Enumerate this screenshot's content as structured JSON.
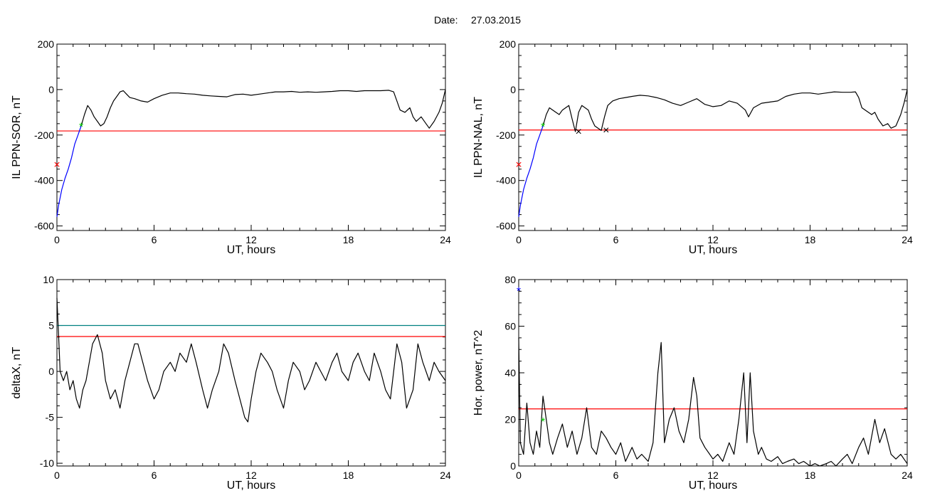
{
  "header": {
    "date_label": "Date:",
    "date_value": "27.03.2015"
  },
  "colors": {
    "signal": "#000000",
    "threshold": "#ff0000",
    "level": "#008080",
    "early": "#0000ff",
    "marker_red": "#ff0000",
    "marker_green": "#00cc00",
    "marker_blue": "#0000ff"
  },
  "chart_data": [
    {
      "id": "il-sor",
      "type": "line",
      "xlabel": "UT, hours",
      "ylabel": "IL PPN-SOR, nT",
      "xlim": [
        0,
        24
      ],
      "ylim": [
        -620,
        200
      ],
      "xticks": [
        0,
        6,
        12,
        18,
        24
      ],
      "yticks": [
        -600,
        -400,
        -200,
        0,
        200
      ],
      "threshold": -182,
      "series": [
        {
          "x": [
            0,
            0.1,
            0.3,
            0.5,
            0.7,
            0.9,
            1.1,
            1.3,
            1.5
          ],
          "y": [
            -560,
            -510,
            -440,
            -390,
            -350,
            -300,
            -240,
            -200,
            -160
          ],
          "color_key": "early"
        },
        {
          "x": [
            1.5,
            1.7,
            1.9,
            2.1,
            2.3,
            2.5,
            2.7,
            2.9,
            3.1,
            3.3,
            3.5,
            3.7,
            3.9,
            4.1,
            4.3,
            4.5,
            4.8,
            5.2,
            5.6,
            6,
            6.5,
            7,
            7.5,
            8,
            8.5,
            9,
            9.5,
            10,
            10.5,
            11,
            11.5,
            12,
            12.5,
            13,
            13.5,
            14,
            14.5,
            15,
            15.5,
            16,
            16.5,
            17,
            17.5,
            18,
            18.5,
            19,
            19.5,
            20,
            20.5,
            20.8,
            21,
            21.2,
            21.5,
            21.8,
            22,
            22.2,
            22.5,
            22.8,
            23,
            23.3,
            23.6,
            23.8,
            24
          ],
          "y": [
            -160,
            -110,
            -70,
            -90,
            -120,
            -140,
            -160,
            -150,
            -120,
            -80,
            -50,
            -30,
            -10,
            -5,
            -20,
            -35,
            -40,
            -50,
            -55,
            -40,
            -25,
            -15,
            -15,
            -18,
            -20,
            -25,
            -28,
            -30,
            -32,
            -22,
            -20,
            -25,
            -20,
            -15,
            -10,
            -10,
            -8,
            -12,
            -10,
            -12,
            -10,
            -8,
            -5,
            -5,
            -8,
            -5,
            -5,
            -5,
            -3,
            -10,
            -50,
            -90,
            -100,
            -80,
            -120,
            -140,
            -120,
            -150,
            -170,
            -140,
            -100,
            -60,
            0
          ],
          "color_key": "signal"
        }
      ],
      "markers": [
        {
          "x": 0,
          "y": -330,
          "symbol": "×",
          "color_key": "marker_red"
        },
        {
          "x": 1.5,
          "y": -165,
          "symbol": "*",
          "color_key": "marker_green"
        }
      ]
    },
    {
      "id": "il-nal",
      "type": "line",
      "xlabel": "UT, hours",
      "ylabel": "IL PPN-NAL, nT",
      "xlim": [
        0,
        24
      ],
      "ylim": [
        -620,
        200
      ],
      "xticks": [
        0,
        6,
        12,
        18,
        24
      ],
      "yticks": [
        -600,
        -400,
        -200,
        0,
        200
      ],
      "threshold": -178,
      "series": [
        {
          "x": [
            0,
            0.1,
            0.3,
            0.5,
            0.7,
            0.9,
            1.1,
            1.3,
            1.5
          ],
          "y": [
            -560,
            -510,
            -440,
            -390,
            -350,
            -300,
            -240,
            -200,
            -160
          ],
          "color_key": "early"
        },
        {
          "x": [
            1.5,
            1.7,
            1.9,
            2.1,
            2.3,
            2.5,
            2.7,
            2.9,
            3.1,
            3.3,
            3.5,
            3.7,
            3.9,
            4.1,
            4.3,
            4.5,
            4.7,
            4.9,
            5.1,
            5.3,
            5.5,
            5.8,
            6.2,
            6.6,
            7,
            7.5,
            8,
            8.5,
            9,
            9.5,
            10,
            10.5,
            11,
            11.5,
            12,
            12.5,
            13,
            13.5,
            14,
            14.2,
            14.5,
            15,
            15.5,
            16,
            16.5,
            17,
            17.5,
            18,
            18.5,
            19,
            19.5,
            20,
            20.5,
            20.8,
            21,
            21.2,
            21.5,
            21.8,
            22,
            22.2,
            22.5,
            22.8,
            23,
            23.3,
            23.6,
            23.8,
            24
          ],
          "y": [
            -160,
            -110,
            -80,
            -90,
            -100,
            -110,
            -90,
            -80,
            -70,
            -130,
            -185,
            -100,
            -70,
            -80,
            -90,
            -130,
            -160,
            -170,
            -180,
            -120,
            -70,
            -50,
            -40,
            -35,
            -30,
            -25,
            -28,
            -35,
            -45,
            -60,
            -70,
            -55,
            -40,
            -65,
            -75,
            -70,
            -50,
            -60,
            -90,
            -120,
            -80,
            -60,
            -55,
            -50,
            -30,
            -20,
            -15,
            -15,
            -20,
            -15,
            -10,
            -12,
            -12,
            -10,
            -35,
            -80,
            -95,
            -110,
            -100,
            -130,
            -160,
            -150,
            -170,
            -160,
            -110,
            -60,
            0
          ],
          "color_key": "signal"
        }
      ],
      "markers": [
        {
          "x": 0,
          "y": -330,
          "symbol": "×",
          "color_key": "marker_red"
        },
        {
          "x": 1.5,
          "y": -165,
          "symbol": "*",
          "color_key": "marker_green"
        },
        {
          "x": 3.7,
          "y": -185,
          "symbol": "×",
          "color_key": "signal"
        },
        {
          "x": 5.4,
          "y": -178,
          "symbol": "×",
          "color_key": "signal"
        }
      ]
    },
    {
      "id": "deltax",
      "type": "line",
      "xlabel": "UT, hours",
      "ylabel": "deltaX, nT",
      "xlim": [
        0,
        24
      ],
      "ylim": [
        -10.3,
        10
      ],
      "xticks": [
        0,
        6,
        12,
        18,
        24
      ],
      "yticks": [
        -10,
        -5,
        0,
        5,
        10
      ],
      "threshold": 3.8,
      "level": 5,
      "series": [
        {
          "x": [
            0,
            0.1,
            0.2,
            0.4,
            0.6,
            0.8,
            1,
            1.2,
            1.4,
            1.6,
            1.8,
            2,
            2.2,
            2.5,
            2.8,
            3,
            3.3,
            3.6,
            3.9,
            4.2,
            4.5,
            4.8,
            5,
            5.3,
            5.6,
            6,
            6.3,
            6.6,
            7,
            7.3,
            7.6,
            8,
            8.3,
            8.6,
            9,
            9.3,
            9.6,
            10,
            10.3,
            10.6,
            11,
            11.3,
            11.6,
            11.8,
            12,
            12.3,
            12.6,
            13,
            13.3,
            13.6,
            14,
            14.3,
            14.6,
            15,
            15.3,
            15.6,
            16,
            16.3,
            16.6,
            17,
            17.3,
            17.6,
            18,
            18.3,
            18.6,
            19,
            19.3,
            19.6,
            20,
            20.3,
            20.6,
            21,
            21.3,
            21.6,
            22,
            22.3,
            22.6,
            23,
            23.3,
            23.6,
            24
          ],
          "y": [
            8,
            4,
            0,
            -1,
            0,
            -2,
            -1,
            -3,
            -4,
            -2,
            -1,
            1,
            3,
            4,
            2,
            -1,
            -3,
            -2,
            -4,
            -1,
            1,
            3,
            3,
            1,
            -1,
            -3,
            -2,
            0,
            1,
            0,
            2,
            1,
            3,
            1,
            -2,
            -4,
            -2,
            0,
            3,
            2,
            -1,
            -3,
            -5,
            -5.5,
            -3,
            0,
            2,
            1,
            0,
            -2,
            -4,
            -1,
            1,
            0,
            -2,
            -1,
            1,
            0,
            -1,
            1,
            2,
            0,
            -1,
            1,
            2,
            0,
            -1,
            2,
            0,
            -2,
            -3,
            3,
            1,
            -4,
            -2,
            3,
            1,
            -1,
            1,
            0,
            -1
          ],
          "color_key": "signal"
        }
      ],
      "markers": []
    },
    {
      "id": "hor-power",
      "type": "line",
      "xlabel": "UT, hours",
      "ylabel": "Hor. power, nT^2",
      "xlim": [
        0,
        24
      ],
      "ylim": [
        0,
        80
      ],
      "xticks": [
        0,
        6,
        12,
        18,
        24
      ],
      "yticks": [
        0,
        20,
        40,
        60,
        80
      ],
      "threshold": 24.5,
      "series": [
        {
          "x": [
            0,
            0.1,
            0.3,
            0.5,
            0.7,
            0.9,
            1.1,
            1.3,
            1.5,
            1.7,
            1.9,
            2.1,
            2.4,
            2.7,
            3,
            3.3,
            3.6,
            3.9,
            4.2,
            4.5,
            4.8,
            5.1,
            5.4,
            5.7,
            6,
            6.3,
            6.6,
            7,
            7.3,
            7.6,
            8,
            8.3,
            8.6,
            8.8,
            9,
            9.3,
            9.6,
            9.9,
            10.2,
            10.5,
            10.8,
            11,
            11.2,
            11.5,
            11.8,
            12,
            12.3,
            12.6,
            13,
            13.3,
            13.6,
            13.9,
            14.1,
            14.3,
            14.5,
            14.8,
            15,
            15.3,
            15.6,
            16,
            16.3,
            16.6,
            17,
            17.3,
            17.6,
            18,
            18.3,
            18.6,
            19,
            19.3,
            19.6,
            20,
            20.3,
            20.6,
            21,
            21.3,
            21.6,
            22,
            22.3,
            22.6,
            23,
            23.3,
            23.6,
            24
          ],
          "y": [
            55,
            10,
            5,
            27,
            10,
            5,
            15,
            8,
            30,
            20,
            10,
            5,
            12,
            18,
            8,
            15,
            5,
            12,
            25,
            8,
            5,
            15,
            12,
            8,
            5,
            10,
            2,
            8,
            3,
            5,
            2,
            10,
            40,
            53,
            10,
            20,
            25,
            15,
            10,
            20,
            38,
            30,
            12,
            8,
            5,
            3,
            5,
            2,
            10,
            5,
            20,
            40,
            10,
            40,
            15,
            5,
            8,
            3,
            2,
            4,
            1,
            2,
            3,
            1,
            2,
            0,
            1,
            0,
            1,
            2,
            0,
            3,
            5,
            1,
            8,
            12,
            5,
            20,
            10,
            16,
            5,
            3,
            5,
            1
          ],
          "color_key": "signal"
        }
      ],
      "markers": [
        {
          "x": 0,
          "y": 75,
          "symbol": "*",
          "color_key": "marker_blue"
        },
        {
          "x": 1.5,
          "y": 19,
          "symbol": "*",
          "color_key": "marker_green"
        }
      ]
    }
  ]
}
